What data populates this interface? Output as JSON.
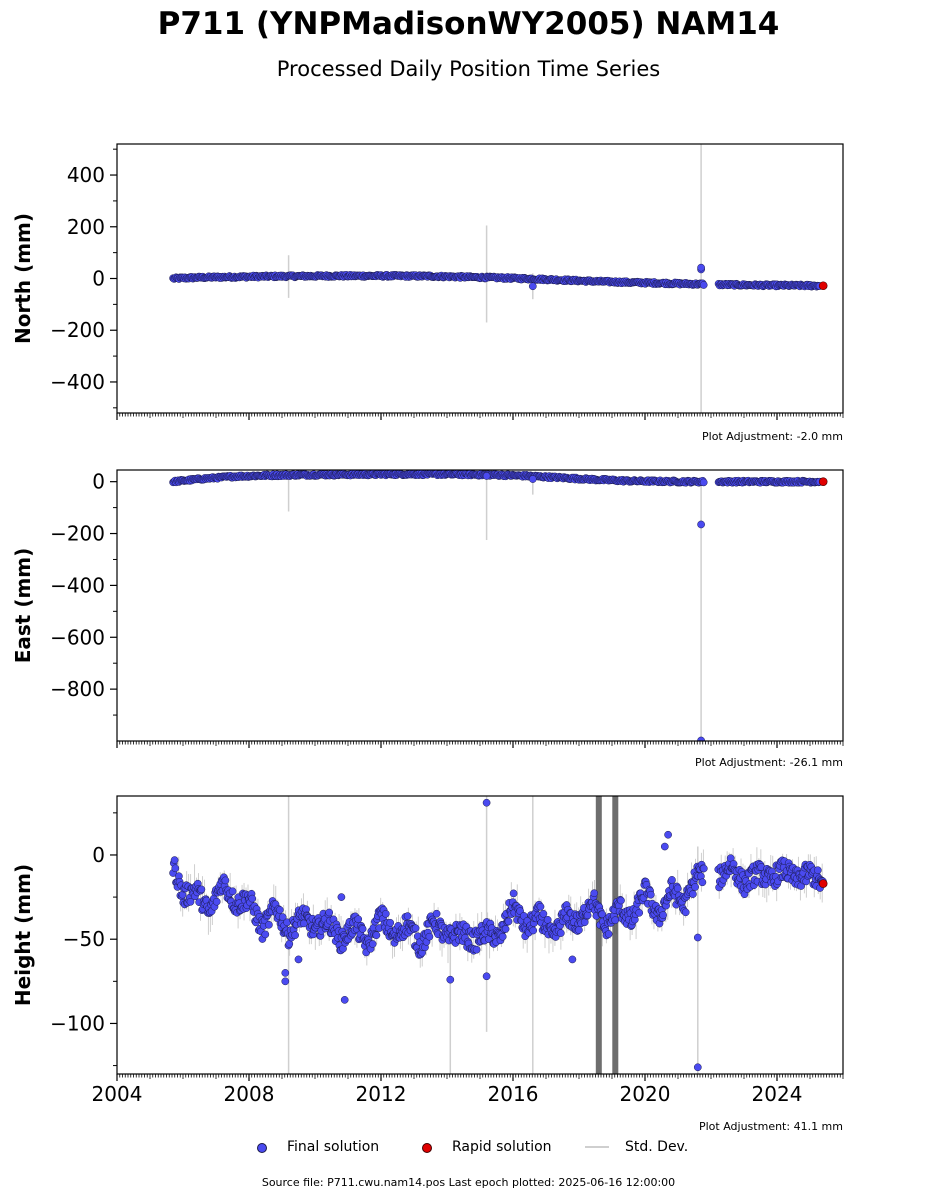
{
  "title": "P711 (YNPMadisonWY2005) NAM14",
  "subtitle": "Processed Daily Position Time Series",
  "colors": {
    "final": "#4a4af0",
    "final_edge": "#1a1a4a",
    "rapid": "#e00000",
    "std": "#cfcfcf",
    "std_dark": "#555555"
  },
  "legend": {
    "final_label": "Final solution",
    "rapid_label": "Rapid solution",
    "std_label": "Std. Dev."
  },
  "footer": "Source file: P711.cwu.nam14.pos  Last epoch plotted: 2025-06-16 12:00:00",
  "chart_data": [
    {
      "type": "scatter",
      "ylabel": "North (mm)",
      "adjustment": "Plot Adjustment: -2.0 mm",
      "xlim": [
        2004,
        2026
      ],
      "ylim": [
        -520,
        520
      ],
      "yticks": [
        400,
        200,
        0,
        -200,
        -400
      ],
      "ytick_labels": [
        "400",
        "200",
        "0",
        "−200",
        "−400"
      ],
      "series": [
        {
          "x": [
            2005.7,
            2006.5,
            2007.5,
            2008.5,
            2009.5,
            2010.5,
            2011.5,
            2012.5,
            2013.5,
            2014.5,
            2015.5,
            2016.5,
            2017.5,
            2018.5,
            2019.5,
            2020.5,
            2021.4,
            2022.5,
            2023.5,
            2024.5,
            2025.3
          ],
          "y": [
            0,
            4,
            6,
            8,
            9,
            10,
            10,
            10,
            9,
            6,
            3,
            -1,
            -6,
            -11,
            -15,
            -18,
            -21,
            -24,
            -26,
            -27,
            -28
          ]
        }
      ],
      "outliers": [
        {
          "x": 2016.6,
          "y": -30
        },
        {
          "x": 2021.7,
          "y": 35
        },
        {
          "x": 2021.7,
          "y": 42
        }
      ],
      "std_spikes": [
        {
          "x": 2009.2,
          "y0": -75,
          "y1": 90
        },
        {
          "x": 2015.2,
          "y0": -170,
          "y1": 205
        },
        {
          "x": 2016.6,
          "y0": -80,
          "y1": 20
        },
        {
          "x": 2021.7,
          "y0": -520,
          "y1": 520
        }
      ],
      "rapid": [
        {
          "x": 2025.4,
          "y": -28
        }
      ],
      "gaps": [
        [
          2021.8,
          2022.2
        ]
      ]
    },
    {
      "type": "scatter",
      "ylabel": "East (mm)",
      "adjustment": "Plot Adjustment: -26.1 mm",
      "xlim": [
        2004,
        2026
      ],
      "ylim": [
        -1000,
        45
      ],
      "yticks": [
        0,
        -200,
        -400,
        -600,
        -800
      ],
      "ytick_labels": [
        "0",
        "−200",
        "−400",
        "−600",
        "−800"
      ],
      "series": [
        {
          "x": [
            2005.7,
            2006.5,
            2007.5,
            2008.5,
            2009.5,
            2010.5,
            2011.5,
            2012.5,
            2013.5,
            2014.5,
            2015.5,
            2016.5,
            2017.5,
            2018.5,
            2019.5,
            2020.5,
            2021.4,
            2022.5,
            2023.5,
            2024.5,
            2025.3
          ],
          "y": [
            0,
            10,
            20,
            24,
            26,
            27,
            28,
            29,
            29,
            28,
            26,
            22,
            15,
            8,
            3,
            1,
            0,
            0,
            0,
            0,
            0
          ]
        }
      ],
      "outliers": [
        {
          "x": 2021.7,
          "y": -165
        },
        {
          "x": 2021.7,
          "y": -998
        },
        {
          "x": 2015.2,
          "y": 22
        },
        {
          "x": 2016.6,
          "y": 10
        }
      ],
      "std_spikes": [
        {
          "x": 2009.2,
          "y0": -115,
          "y1": 30
        },
        {
          "x": 2015.2,
          "y0": -225,
          "y1": 30
        },
        {
          "x": 2016.6,
          "y0": -50,
          "y1": 15
        },
        {
          "x": 2021.7,
          "y0": -1000,
          "y1": 0
        }
      ],
      "rapid": [
        {
          "x": 2025.4,
          "y": 0
        }
      ],
      "gaps": [
        [
          2021.8,
          2022.2
        ]
      ]
    },
    {
      "type": "scatter",
      "ylabel": "Height (mm)",
      "adjustment": "Plot Adjustment: 41.1 mm",
      "xlim": [
        2004,
        2026
      ],
      "ylim": [
        -130,
        35
      ],
      "yticks": [
        0,
        -50,
        -100
      ],
      "ytick_labels": [
        "0",
        "−50",
        "−100"
      ],
      "xticks": [
        2004,
        2008,
        2012,
        2016,
        2020,
        2024
      ],
      "xtick_labels": [
        "2004",
        "2008",
        "2012",
        "2016",
        "2020",
        "2024"
      ],
      "series": [
        {
          "x": [
            2005.7,
            2006.0,
            2006.4,
            2006.8,
            2007.2,
            2007.6,
            2008.0,
            2008.4,
            2008.8,
            2009.2,
            2009.6,
            2010.0,
            2010.4,
            2010.8,
            2011.2,
            2011.6,
            2012.0,
            2012.4,
            2012.8,
            2013.2,
            2013.6,
            2014.0,
            2014.4,
            2014.8,
            2015.2,
            2015.6,
            2016.0,
            2016.4,
            2016.8,
            2017.2,
            2017.6,
            2018.0,
            2018.4,
            2018.8,
            2019.2,
            2019.6,
            2020.0,
            2020.4,
            2020.8,
            2021.2,
            2021.6,
            2022.2,
            2022.6,
            2023.0,
            2023.4,
            2023.8,
            2024.2,
            2024.6,
            2025.0,
            2025.4
          ],
          "y": [
            -5,
            -25,
            -20,
            -35,
            -15,
            -30,
            -25,
            -45,
            -30,
            -48,
            -35,
            -45,
            -38,
            -52,
            -40,
            -55,
            -35,
            -50,
            -40,
            -55,
            -38,
            -50,
            -45,
            -52,
            -45,
            -50,
            -28,
            -45,
            -35,
            -50,
            -35,
            -42,
            -25,
            -45,
            -30,
            -40,
            -20,
            -38,
            -20,
            -30,
            -10,
            -15,
            -5,
            -18,
            -10,
            -15,
            -8,
            -15,
            -10,
            -18
          ]
        }
      ],
      "outliers": [
        {
          "x": 2009.1,
          "y": -70
        },
        {
          "x": 2009.1,
          "y": -75
        },
        {
          "x": 2009.5,
          "y": -62
        },
        {
          "x": 2010.9,
          "y": -86
        },
        {
          "x": 2010.8,
          "y": -25
        },
        {
          "x": 2014.1,
          "y": -74
        },
        {
          "x": 2015.2,
          "y": 31
        },
        {
          "x": 2015.2,
          "y": -72
        },
        {
          "x": 2020.7,
          "y": 12
        },
        {
          "x": 2020.6,
          "y": 5
        },
        {
          "x": 2021.6,
          "y": -49
        },
        {
          "x": 2021.6,
          "y": -126
        },
        {
          "x": 2017.8,
          "y": -62
        }
      ],
      "std_spikes": [
        {
          "x": 2009.2,
          "y0": -130,
          "y1": 35
        },
        {
          "x": 2014.1,
          "y0": -130,
          "y1": -40
        },
        {
          "x": 2015.2,
          "y0": -105,
          "y1": 35
        },
        {
          "x": 2016.6,
          "y0": -130,
          "y1": 35
        },
        {
          "x": 2021.6,
          "y0": -130,
          "y1": 5
        }
      ],
      "dark_spikes": [
        {
          "x": 2018.6,
          "y0": -130,
          "y1": 35
        },
        {
          "x": 2019.1,
          "y0": -130,
          "y1": 35
        }
      ],
      "rapid": [
        {
          "x": 2025.4,
          "y": -17
        }
      ],
      "gaps": [
        [
          2021.8,
          2022.2
        ]
      ]
    }
  ]
}
